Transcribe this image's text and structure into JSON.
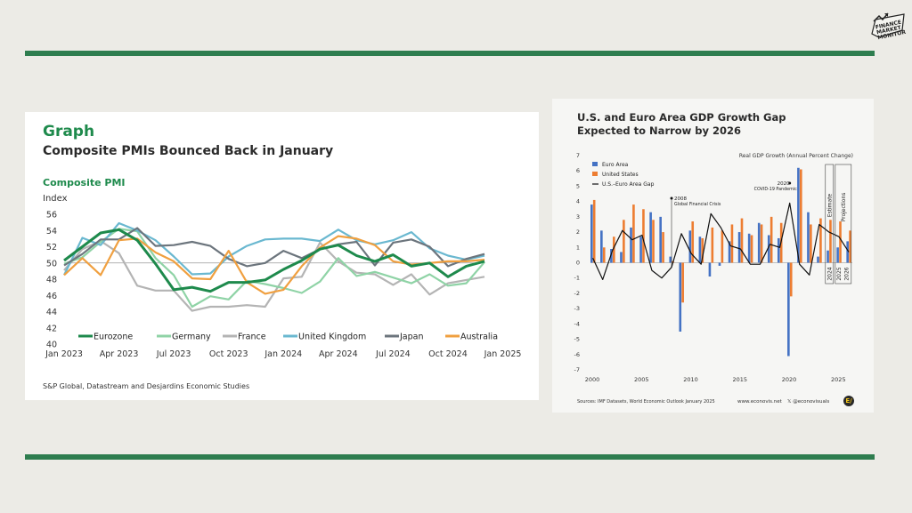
{
  "logo": {
    "text": "FINANCE MARKET MONITOR"
  },
  "left": {
    "header": "Graph",
    "title": "Composite PMIs Bounced Back in January",
    "subtitle": "Composite PMI",
    "source": "S&P Global, Datastream and Desjardins Economic Studies"
  },
  "right": {
    "title_line1": "U.S. and Euro Area GDP Growth Gap",
    "title_line2": "Expected to Narrow by 2026",
    "source": "Sources: IMF Datasets, World Economic Outlook January 2025",
    "website": "www.econovis.net",
    "handle": "@econovisuals",
    "badge": "E/"
  },
  "chart_data": [
    {
      "type": "line",
      "title": "Composite PMIs Bounced Back in January",
      "ylabel": "Index",
      "ylim": [
        40,
        56
      ],
      "yticks": [
        40,
        42,
        44,
        46,
        48,
        50,
        52,
        54,
        56
      ],
      "x_tick_labels": [
        "Jan 2023",
        "Apr 2023",
        "Jul 2023",
        "Oct 2023",
        "Jan 2024",
        "Apr 2024",
        "Jul 2024",
        "Oct 2024",
        "Jan 2025"
      ],
      "reference_line": 50,
      "legend_position": "bottom",
      "series": [
        {
          "name": "Eurozone",
          "color": "#1e8a4c",
          "values": [
            50.3,
            52.0,
            53.7,
            54.1,
            52.8,
            49.9,
            46.7,
            47.0,
            46.5,
            47.6,
            47.6,
            47.9,
            49.2,
            50.3,
            51.7,
            52.2,
            50.9,
            50.2,
            51.0,
            49.6,
            50.0,
            48.3,
            49.6,
            50.2
          ]
        },
        {
          "name": "Germany",
          "color": "#8fd3a6",
          "values": [
            49.9,
            50.7,
            52.6,
            54.2,
            53.9,
            50.6,
            48.5,
            44.6,
            45.9,
            45.5,
            47.8,
            47.4,
            46.9,
            46.3,
            47.7,
            50.6,
            48.4,
            48.9,
            48.2,
            47.5,
            48.6,
            47.2,
            47.5,
            50.1
          ]
        },
        {
          "name": "France",
          "color": "#b4b4b4",
          "values": [
            49.1,
            51.7,
            52.7,
            51.2,
            47.2,
            46.6,
            46.6,
            44.1,
            44.6,
            44.6,
            44.8,
            44.6,
            48.1,
            48.3,
            52.5,
            50.2,
            48.8,
            48.6,
            47.3,
            48.6,
            46.1,
            47.5,
            47.9,
            48.3
          ]
        },
        {
          "name": "United Kingdom",
          "color": "#6ab8d0",
          "values": [
            48.5,
            53.1,
            52.2,
            54.9,
            54.0,
            52.8,
            50.8,
            48.6,
            48.7,
            50.8,
            52.1,
            52.9,
            53.0,
            53.0,
            52.7,
            54.1,
            52.8,
            52.3,
            52.8,
            53.8,
            51.8,
            50.9,
            50.4,
            50.9
          ]
        },
        {
          "name": "Japan",
          "color": "#6c757d",
          "values": [
            49.7,
            51.1,
            52.9,
            52.9,
            54.3,
            52.1,
            52.2,
            52.6,
            52.1,
            50.5,
            49.6,
            50.0,
            51.5,
            50.6,
            51.7,
            52.3,
            52.6,
            49.7,
            52.5,
            52.9,
            52.0,
            49.6,
            50.5,
            51.1
          ]
        },
        {
          "name": "Australia",
          "color": "#f0a040",
          "values": [
            48.5,
            50.6,
            48.5,
            52.8,
            53.0,
            51.3,
            50.2,
            48.1,
            48.0,
            51.5,
            47.6,
            46.2,
            46.7,
            49.6,
            51.9,
            53.3,
            53.0,
            52.2,
            50.2,
            49.8,
            50.0,
            50.2,
            50.2,
            50.4
          ]
        }
      ]
    },
    {
      "type": "bar",
      "title": "U.S. and Euro Area GDP Growth Gap Expected to Narrow by 2026",
      "ylabel": "Real GDP Growth (Annual Percent Change)",
      "ylim": [
        -7,
        7
      ],
      "yticks": [
        -7,
        -6,
        -5,
        -4,
        -3,
        -2,
        -1,
        0,
        1,
        2,
        3,
        4,
        5,
        6,
        7
      ],
      "x": [
        2000,
        2001,
        2002,
        2003,
        2004,
        2005,
        2006,
        2007,
        2008,
        2009,
        2010,
        2011,
        2012,
        2013,
        2014,
        2015,
        2016,
        2017,
        2018,
        2019,
        2020,
        2021,
        2022,
        2023,
        2024,
        2025,
        2026
      ],
      "x_tick_labels": [
        "2000",
        "2005",
        "2010",
        "2015",
        "2020",
        "2025"
      ],
      "legend_position": "top-left",
      "series": [
        {
          "name": "Euro Area",
          "color": "#4472c4",
          "values": [
            3.8,
            2.1,
            0.9,
            0.7,
            2.3,
            1.7,
            3.3,
            3.0,
            0.4,
            -4.5,
            2.1,
            1.7,
            -0.9,
            -0.2,
            1.4,
            2.0,
            1.9,
            2.6,
            1.8,
            1.6,
            -6.1,
            6.2,
            3.3,
            0.4,
            0.8,
            1.0,
            1.4
          ]
        },
        {
          "name": "United States",
          "color": "#ed7d31",
          "values": [
            4.1,
            1.0,
            1.7,
            2.8,
            3.8,
            3.5,
            2.8,
            2.0,
            0.1,
            -2.6,
            2.7,
            1.6,
            2.3,
            2.1,
            2.5,
            2.9,
            1.8,
            2.5,
            3.0,
            2.6,
            -2.2,
            6.1,
            2.5,
            2.9,
            2.8,
            2.7,
            2.1
          ]
        },
        {
          "name": "U.S.–Euro Area Gap",
          "color": "#111111",
          "type": "line",
          "values": [
            0.3,
            -1.1,
            0.8,
            2.1,
            1.5,
            1.8,
            -0.5,
            -1.0,
            -0.3,
            1.9,
            0.6,
            -0.1,
            3.2,
            2.3,
            1.1,
            0.9,
            -0.1,
            -0.1,
            1.2,
            1.0,
            3.9,
            -0.1,
            -0.8,
            2.5,
            2.0,
            1.7,
            0.7
          ]
        }
      ],
      "annotations": [
        {
          "x": 2008,
          "text_line1": "2008",
          "text_line2": "Global Financial Crisis"
        },
        {
          "x": 2020,
          "text_line1": "2020",
          "text_line2": "COVID-19 Pandemic"
        }
      ],
      "region_labels": [
        {
          "label": "Estimate",
          "years": [
            "2024"
          ]
        },
        {
          "label": "Projections",
          "years": [
            "2025",
            "2026"
          ]
        }
      ]
    }
  ]
}
